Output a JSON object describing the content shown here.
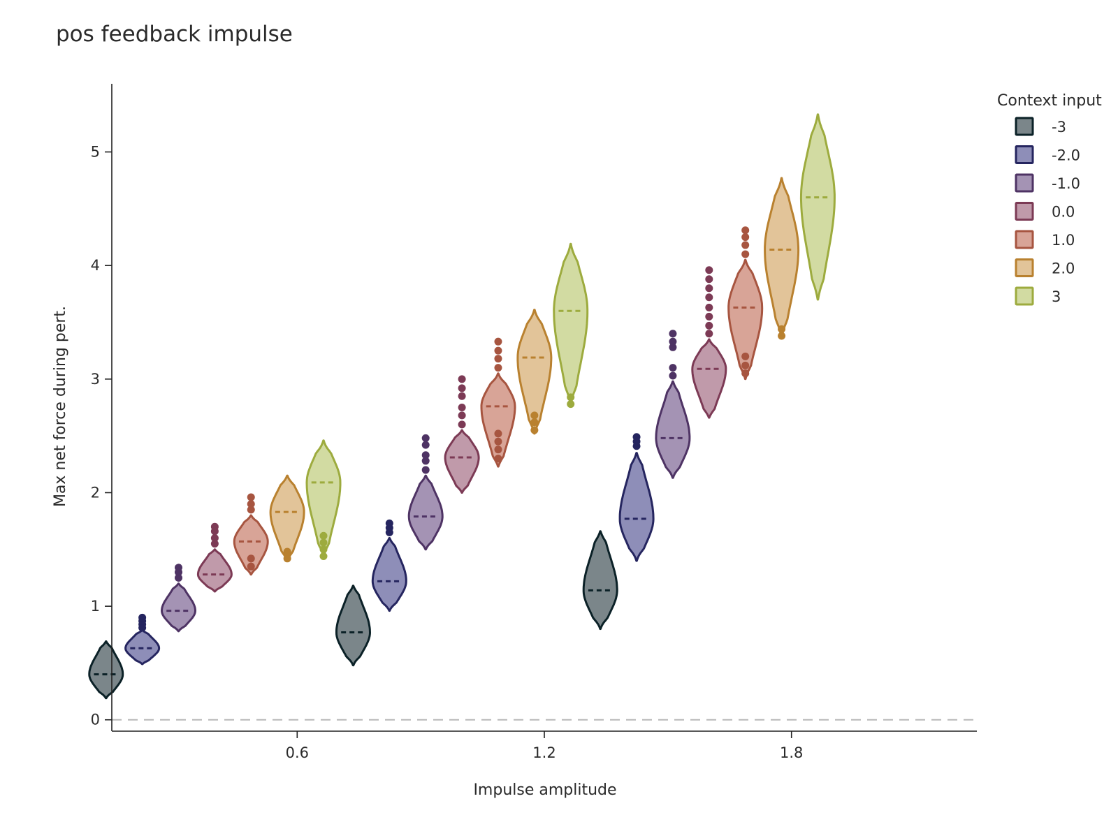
{
  "chart_data": {
    "type": "violin",
    "title": "pos feedback impulse",
    "xlabel": "Impulse amplitude",
    "ylabel": "Max net force during pert.",
    "legend_title": "Context input",
    "legend_position": "top-right",
    "xlim": [
      0.15,
      2.25
    ],
    "ylim": [
      -0.1,
      5.6
    ],
    "x_ticks": [
      0.6,
      1.2,
      1.8
    ],
    "x_tick_labels": [
      "0.6",
      "1.2",
      "1.8"
    ],
    "y_ticks": [
      0,
      1,
      2,
      3,
      4,
      5
    ],
    "y_tick_labels": [
      "0",
      "1",
      "2",
      "3",
      "4",
      "5"
    ],
    "reference_line": {
      "y": 0,
      "style": "dashed",
      "color": "#b8b8b8"
    },
    "group_positions": [
      0.4,
      1.0,
      1.6
    ],
    "series": [
      {
        "name": "-3",
        "color": "#0b2127",
        "fill": "#7b868a",
        "violins": [
          {
            "group": 0.4,
            "median": 0.4,
            "min": 0.19,
            "max": 0.69,
            "outliers": []
          },
          {
            "group": 1.0,
            "median": 0.77,
            "min": 0.48,
            "max": 1.18,
            "outliers": []
          },
          {
            "group": 1.6,
            "median": 1.14,
            "min": 0.8,
            "max": 1.66,
            "outliers": []
          }
        ]
      },
      {
        "name": "-2.0",
        "color": "#25255f",
        "fill": "#8e8eb8",
        "violins": [
          {
            "group": 0.4,
            "median": 0.63,
            "min": 0.49,
            "max": 0.79,
            "outliers": [
              0.81,
              0.84,
              0.87,
              0.9
            ]
          },
          {
            "group": 1.0,
            "median": 1.22,
            "min": 0.96,
            "max": 1.6,
            "outliers": [
              1.65,
              1.69,
              1.73
            ]
          },
          {
            "group": 1.6,
            "median": 1.77,
            "min": 1.4,
            "max": 2.35,
            "outliers": [
              2.41,
              2.45,
              2.49
            ]
          }
        ]
      },
      {
        "name": "-1.0",
        "color": "#4e3364",
        "fill": "#a493b4",
        "violins": [
          {
            "group": 0.4,
            "median": 0.96,
            "min": 0.78,
            "max": 1.2,
            "outliers": [
              1.25,
              1.3,
              1.34
            ]
          },
          {
            "group": 1.0,
            "median": 1.79,
            "min": 1.5,
            "max": 2.15,
            "outliers": [
              2.2,
              2.28,
              2.33,
              2.42,
              2.48
            ]
          },
          {
            "group": 1.6,
            "median": 2.48,
            "min": 2.13,
            "max": 2.98,
            "outliers": [
              3.03,
              3.1,
              3.28,
              3.33,
              3.4
            ]
          }
        ]
      },
      {
        "name": "0.0",
        "color": "#7c3a55",
        "fill": "#c09aaa",
        "violins": [
          {
            "group": 0.4,
            "median": 1.28,
            "min": 1.13,
            "max": 1.5,
            "outliers": [
              1.55,
              1.6,
              1.66,
              1.7
            ]
          },
          {
            "group": 1.0,
            "median": 2.31,
            "min": 2.0,
            "max": 2.55,
            "outliers": [
              2.6,
              2.68,
              2.75,
              2.85,
              2.92,
              3.0
            ]
          },
          {
            "group": 1.6,
            "median": 3.09,
            "min": 2.66,
            "max": 3.35,
            "outliers": [
              3.4,
              3.47,
              3.55,
              3.63,
              3.72,
              3.8,
              3.88,
              3.96
            ]
          }
        ]
      },
      {
        "name": "1.0",
        "color": "#a75540",
        "fill": "#d8a497",
        "violins": [
          {
            "group": 0.4,
            "median": 1.57,
            "min": 1.28,
            "max": 1.8,
            "outliers": [
              1.35,
              1.42,
              1.85,
              1.9,
              1.96
            ]
          },
          {
            "group": 1.0,
            "median": 2.76,
            "min": 2.23,
            "max": 3.05,
            "outliers": [
              2.3,
              2.38,
              2.45,
              2.52,
              3.1,
              3.18,
              3.25,
              3.33
            ]
          },
          {
            "group": 1.6,
            "median": 3.63,
            "min": 3.0,
            "max": 4.05,
            "outliers": [
              3.05,
              3.12,
              3.2,
              4.1,
              4.18,
              4.25,
              4.31
            ]
          }
        ]
      },
      {
        "name": "2.0",
        "color": "#b9812f",
        "fill": "#e2c499",
        "violins": [
          {
            "group": 0.4,
            "median": 1.83,
            "min": 1.4,
            "max": 2.15,
            "outliers": [
              1.42,
              1.48
            ]
          },
          {
            "group": 1.0,
            "median": 3.19,
            "min": 2.52,
            "max": 3.61,
            "outliers": [
              2.55,
              2.62,
              2.68
            ]
          },
          {
            "group": 1.6,
            "median": 4.14,
            "min": 3.37,
            "max": 4.77,
            "outliers": [
              3.38,
              3.44
            ]
          }
        ]
      },
      {
        "name": "3",
        "color": "#9dab3e",
        "fill": "#d2dba2",
        "violins": [
          {
            "group": 0.4,
            "median": 2.09,
            "min": 1.44,
            "max": 2.46,
            "outliers": [
              1.44,
              1.5,
              1.56,
              1.62
            ]
          },
          {
            "group": 1.0,
            "median": 3.6,
            "min": 2.78,
            "max": 4.19,
            "outliers": [
              2.78,
              2.84
            ]
          },
          {
            "group": 1.6,
            "median": 4.6,
            "min": 3.7,
            "max": 5.33,
            "outliers": []
          }
        ]
      }
    ]
  }
}
